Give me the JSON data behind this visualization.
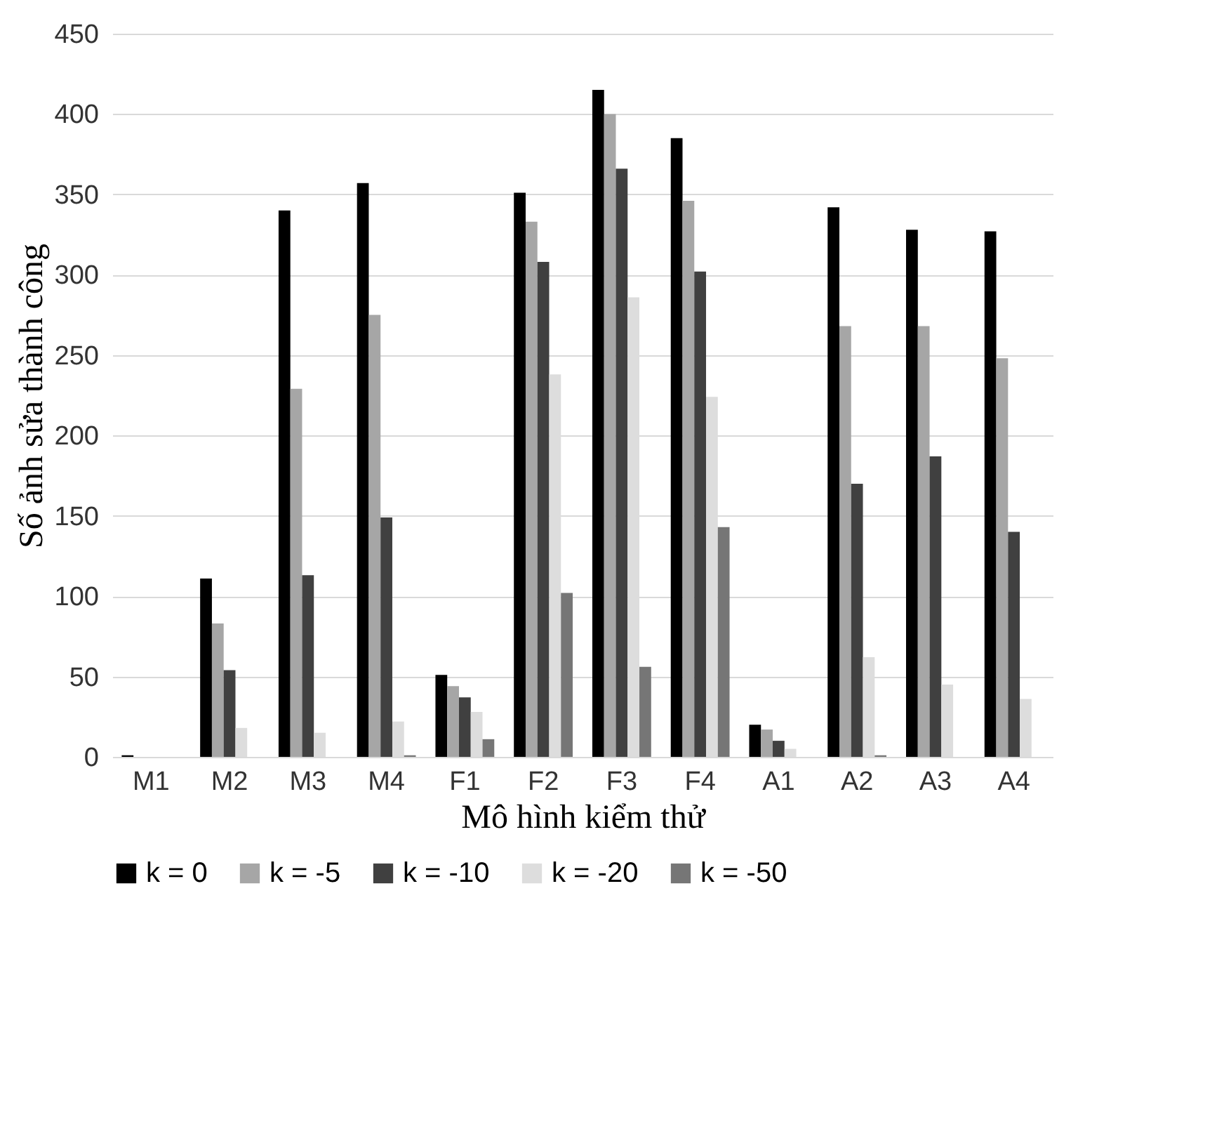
{
  "chart_data": {
    "type": "bar",
    "xlabel": "Mô hình kiểm thử",
    "ylabel": "Số ảnh sửa thành công",
    "categories": [
      "M1",
      "M2",
      "M3",
      "M4",
      "F1",
      "F2",
      "F3",
      "F4",
      "A1",
      "A2",
      "A3",
      "A4"
    ],
    "series": [
      {
        "name": "k = 0",
        "color": "#000000",
        "values": [
          1,
          111,
          340,
          357,
          51,
          351,
          415,
          385,
          20,
          342,
          328,
          327
        ]
      },
      {
        "name": "k = -5",
        "color": "#a6a6a6",
        "values": [
          0,
          83,
          229,
          275,
          44,
          333,
          400,
          346,
          17,
          268,
          268,
          248
        ]
      },
      {
        "name": "k = -10",
        "color": "#404040",
        "values": [
          0,
          54,
          113,
          149,
          37,
          308,
          366,
          302,
          10,
          170,
          187,
          140
        ]
      },
      {
        "name": "k = -20",
        "color": "#dddddd",
        "values": [
          0,
          18,
          15,
          22,
          28,
          238,
          286,
          224,
          5,
          62,
          45,
          36
        ]
      },
      {
        "name": "k = -50",
        "color": "#767676",
        "values": [
          0,
          0,
          0,
          1,
          11,
          102,
          56,
          143,
          0,
          1,
          0,
          0
        ]
      }
    ],
    "ylim": [
      0,
      450
    ],
    "yticks": [
      0,
      50,
      100,
      150,
      200,
      250,
      300,
      350,
      400,
      450
    ],
    "grid": "y",
    "legend": "bottom"
  }
}
